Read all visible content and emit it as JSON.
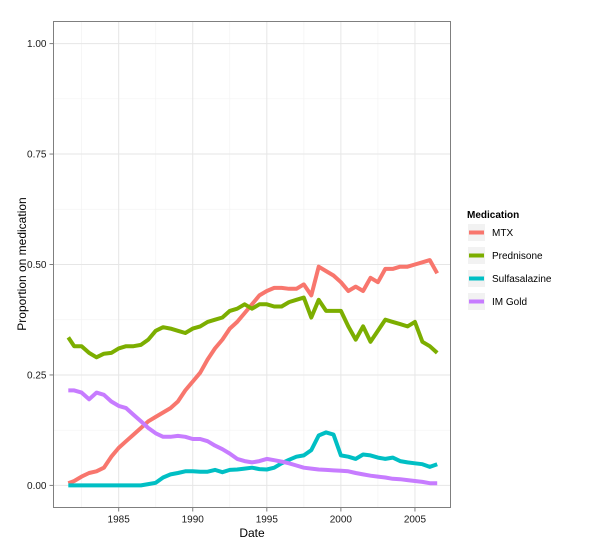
{
  "chart_data": {
    "type": "line",
    "title": "",
    "xlabel": "Date",
    "ylabel": "Proportion on medication",
    "xlim": [
      1980.6,
      2007.4
    ],
    "ylim": [
      -0.05,
      1.05
    ],
    "x_ticks": [
      "1985",
      "1990",
      "1995",
      "2000",
      "2005"
    ],
    "y_ticks": [
      "0.00",
      "0.25",
      "0.50",
      "0.75",
      "1.00"
    ],
    "grid": true,
    "legend": {
      "title": "Medication",
      "position": "right"
    },
    "series": [
      {
        "name": "MTX",
        "color": "#F8766D",
        "x": [
          1981.6,
          1982.0,
          1982.5,
          1983.0,
          1983.5,
          1984.0,
          1984.5,
          1985.0,
          1985.5,
          1986.0,
          1986.5,
          1987.0,
          1987.5,
          1988.0,
          1988.5,
          1989.0,
          1989.5,
          1990.0,
          1990.5,
          1991.0,
          1991.5,
          1992.0,
          1992.5,
          1993.0,
          1993.5,
          1994.0,
          1994.5,
          1995.0,
          1995.5,
          1996.0,
          1996.5,
          1997.0,
          1997.5,
          1998.0,
          1998.5,
          1999.0,
          1999.5,
          2000.0,
          2000.5,
          2001.0,
          2001.5,
          2002.0,
          2002.5,
          2003.0,
          2003.5,
          2004.0,
          2004.5,
          2005.0,
          2005.5,
          2006.0,
          2006.5
        ],
        "values": [
          0.005,
          0.01,
          0.02,
          0.028,
          0.032,
          0.04,
          0.065,
          0.085,
          0.1,
          0.115,
          0.13,
          0.145,
          0.155,
          0.165,
          0.175,
          0.19,
          0.215,
          0.235,
          0.255,
          0.285,
          0.31,
          0.33,
          0.355,
          0.37,
          0.39,
          0.41,
          0.43,
          0.44,
          0.447,
          0.447,
          0.445,
          0.445,
          0.455,
          0.43,
          0.495,
          0.485,
          0.475,
          0.46,
          0.44,
          0.45,
          0.44,
          0.47,
          0.46,
          0.49,
          0.49,
          0.495,
          0.495,
          0.5,
          0.505,
          0.51,
          0.48
        ]
      },
      {
        "name": "Prednisone",
        "color": "#7CAE00",
        "x": [
          1981.6,
          1982.0,
          1982.5,
          1983.0,
          1983.5,
          1984.0,
          1984.5,
          1985.0,
          1985.5,
          1986.0,
          1986.5,
          1987.0,
          1987.5,
          1988.0,
          1988.5,
          1989.0,
          1989.5,
          1990.0,
          1990.5,
          1991.0,
          1991.5,
          1992.0,
          1992.5,
          1993.0,
          1993.5,
          1994.0,
          1994.5,
          1995.0,
          1995.5,
          1996.0,
          1996.5,
          1997.0,
          1997.5,
          1998.0,
          1998.5,
          1999.0,
          1999.5,
          2000.0,
          2000.5,
          2001.0,
          2001.5,
          2002.0,
          2002.5,
          2003.0,
          2003.5,
          2004.0,
          2004.5,
          2005.0,
          2005.5,
          2006.0,
          2006.5
        ],
        "values": [
          0.335,
          0.315,
          0.315,
          0.3,
          0.29,
          0.298,
          0.3,
          0.31,
          0.315,
          0.315,
          0.318,
          0.33,
          0.35,
          0.358,
          0.355,
          0.35,
          0.345,
          0.355,
          0.36,
          0.37,
          0.375,
          0.38,
          0.395,
          0.4,
          0.41,
          0.4,
          0.41,
          0.41,
          0.405,
          0.405,
          0.415,
          0.42,
          0.425,
          0.38,
          0.42,
          0.395,
          0.395,
          0.395,
          0.36,
          0.33,
          0.36,
          0.325,
          0.35,
          0.375,
          0.37,
          0.365,
          0.36,
          0.37,
          0.325,
          0.315,
          0.3
        ]
      },
      {
        "name": "Sulfasalazine",
        "color": "#00BFC4",
        "x": [
          1981.6,
          1982.0,
          1982.5,
          1983.0,
          1983.5,
          1984.0,
          1984.5,
          1985.0,
          1985.5,
          1986.0,
          1986.5,
          1987.0,
          1987.5,
          1988.0,
          1988.5,
          1989.0,
          1989.5,
          1990.0,
          1990.5,
          1991.0,
          1991.5,
          1992.0,
          1992.5,
          1993.0,
          1993.5,
          1994.0,
          1994.5,
          1995.0,
          1995.5,
          1996.0,
          1996.5,
          1997.0,
          1997.5,
          1998.0,
          1998.5,
          1999.0,
          1999.5,
          2000.0,
          2000.5,
          2001.0,
          2001.5,
          2002.0,
          2002.5,
          2003.0,
          2003.5,
          2004.0,
          2004.5,
          2005.0,
          2005.5,
          2006.0,
          2006.5
        ],
        "values": [
          0.0,
          0.0,
          0.0,
          0.0,
          0.0,
          0.0,
          0.0,
          0.0,
          0.0,
          0.0,
          0.0,
          0.003,
          0.006,
          0.018,
          0.025,
          0.028,
          0.032,
          0.032,
          0.031,
          0.031,
          0.035,
          0.03,
          0.035,
          0.036,
          0.038,
          0.04,
          0.037,
          0.036,
          0.04,
          0.05,
          0.058,
          0.065,
          0.068,
          0.08,
          0.113,
          0.12,
          0.115,
          0.068,
          0.065,
          0.06,
          0.07,
          0.068,
          0.063,
          0.06,
          0.063,
          0.055,
          0.052,
          0.05,
          0.048,
          0.042,
          0.048
        ]
      },
      {
        "name": "IM Gold",
        "color": "#C77CFF",
        "x": [
          1981.6,
          1982.0,
          1982.5,
          1983.0,
          1983.5,
          1984.0,
          1984.5,
          1985.0,
          1985.5,
          1986.0,
          1986.5,
          1987.0,
          1987.5,
          1988.0,
          1988.5,
          1989.0,
          1989.5,
          1990.0,
          1990.5,
          1991.0,
          1991.5,
          1992.0,
          1992.5,
          1993.0,
          1993.5,
          1994.0,
          1994.5,
          1995.0,
          1995.5,
          1996.0,
          1996.5,
          1997.0,
          1997.5,
          1998.0,
          1998.5,
          1999.0,
          1999.5,
          2000.0,
          2000.5,
          2001.0,
          2001.5,
          2002.0,
          2002.5,
          2003.0,
          2003.5,
          2004.0,
          2004.5,
          2005.0,
          2005.5,
          2006.0,
          2006.5
        ],
        "values": [
          0.215,
          0.215,
          0.21,
          0.195,
          0.21,
          0.205,
          0.19,
          0.18,
          0.175,
          0.16,
          0.145,
          0.13,
          0.118,
          0.11,
          0.11,
          0.112,
          0.11,
          0.105,
          0.105,
          0.1,
          0.09,
          0.082,
          0.072,
          0.06,
          0.055,
          0.052,
          0.055,
          0.06,
          0.057,
          0.054,
          0.05,
          0.045,
          0.04,
          0.038,
          0.036,
          0.035,
          0.034,
          0.033,
          0.032,
          0.028,
          0.025,
          0.022,
          0.02,
          0.018,
          0.015,
          0.014,
          0.012,
          0.01,
          0.008,
          0.005,
          0.005
        ]
      }
    ]
  }
}
